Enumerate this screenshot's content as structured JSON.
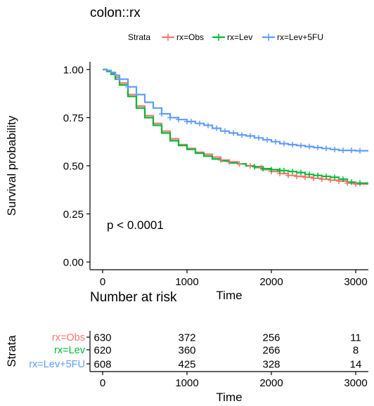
{
  "chart_data": {
    "type": "line",
    "title": "colon::rx",
    "xlabel": "Time",
    "ylabel": "Survival probability",
    "xlim": [
      -150,
      3150
    ],
    "ylim": [
      -0.04,
      1.04
    ],
    "xticks": [
      0,
      1000,
      2000,
      3000
    ],
    "xtick_labels": [
      "0",
      "1000",
      "2000",
      "3000"
    ],
    "yticks": [
      0,
      0.25,
      0.5,
      0.75,
      1.0
    ],
    "ytick_labels": [
      "0.00",
      "0.25",
      "0.50",
      "0.75",
      "1.00"
    ],
    "grid": false,
    "legend": {
      "title": "Strata",
      "position": "top"
    },
    "annotation": "p < 0.0001",
    "series": [
      {
        "name": "rx=Obs",
        "color": "#F8766D",
        "x": [
          0,
          50,
          100,
          150,
          200,
          300,
          400,
          500,
          600,
          700,
          800,
          900,
          1000,
          1100,
          1200,
          1300,
          1400,
          1500,
          1600,
          1700,
          1800,
          1900,
          2000,
          2100,
          2200,
          2300,
          2400,
          2500,
          2600,
          2700,
          2800,
          2900,
          3000,
          3150
        ],
        "y": [
          1.0,
          0.99,
          0.98,
          0.96,
          0.93,
          0.87,
          0.81,
          0.76,
          0.72,
          0.68,
          0.64,
          0.61,
          0.59,
          0.57,
          0.56,
          0.545,
          0.53,
          0.52,
          0.51,
          0.5,
          0.49,
          0.48,
          0.47,
          0.46,
          0.45,
          0.445,
          0.44,
          0.435,
          0.43,
          0.425,
          0.42,
          0.41,
          0.405,
          0.405
        ],
        "censored": [
          1400,
          1500,
          1620,
          1750,
          1880,
          2000,
          2100,
          2200,
          2300,
          2400,
          2500,
          2600,
          2700,
          2800,
          2900,
          3000
        ]
      },
      {
        "name": "rx=Lev",
        "color": "#00BA38",
        "x": [
          0,
          50,
          100,
          150,
          200,
          300,
          400,
          500,
          600,
          700,
          800,
          900,
          1000,
          1100,
          1200,
          1300,
          1400,
          1500,
          1600,
          1700,
          1800,
          1900,
          2000,
          2100,
          2200,
          2300,
          2400,
          2500,
          2600,
          2700,
          2800,
          2900,
          3000,
          3150
        ],
        "y": [
          1.0,
          0.99,
          0.975,
          0.95,
          0.92,
          0.86,
          0.8,
          0.75,
          0.71,
          0.67,
          0.63,
          0.605,
          0.585,
          0.565,
          0.55,
          0.535,
          0.525,
          0.515,
          0.51,
          0.5,
          0.495,
          0.485,
          0.48,
          0.475,
          0.47,
          0.465,
          0.455,
          0.45,
          0.445,
          0.44,
          0.43,
          0.415,
          0.41,
          0.41
        ],
        "censored": [
          1800,
          1900,
          2000,
          2100,
          2150,
          2250,
          2350,
          2450,
          2550,
          2650,
          2750,
          2850,
          2950,
          3050
        ]
      },
      {
        "name": "rx=Lev+5FU",
        "color": "#619CFF",
        "x": [
          0,
          50,
          100,
          150,
          200,
          300,
          400,
          500,
          600,
          700,
          800,
          900,
          1000,
          1100,
          1200,
          1300,
          1400,
          1500,
          1600,
          1700,
          1800,
          1900,
          2000,
          2100,
          2200,
          2300,
          2400,
          2500,
          2600,
          2700,
          2800,
          2900,
          3000,
          3150
        ],
        "y": [
          1.0,
          0.995,
          0.985,
          0.97,
          0.95,
          0.91,
          0.87,
          0.83,
          0.8,
          0.77,
          0.75,
          0.74,
          0.73,
          0.72,
          0.71,
          0.695,
          0.68,
          0.67,
          0.66,
          0.655,
          0.645,
          0.635,
          0.625,
          0.615,
          0.61,
          0.605,
          0.6,
          0.595,
          0.59,
          0.585,
          0.58,
          0.58,
          0.578,
          0.578
        ],
        "censored": [
          200,
          300,
          700,
          800,
          900,
          1000,
          1050,
          1150,
          1250,
          1350,
          1450,
          1550,
          1650,
          1750,
          1850,
          1950,
          2050,
          2150,
          2250,
          2350,
          2450,
          2550,
          2650,
          2750,
          2850,
          2950,
          3050
        ]
      }
    ],
    "risk_table": {
      "title": "Number at risk",
      "ylabel": "Strata",
      "xlabel": "Time",
      "times": [
        0,
        1000,
        2000,
        3000
      ],
      "rows": [
        {
          "label": "rx=Obs",
          "color": "#F8766D",
          "counts": [
            "630",
            "372",
            "256",
            "11"
          ]
        },
        {
          "label": "rx=Lev",
          "color": "#00BA38",
          "counts": [
            "620",
            "360",
            "266",
            "8"
          ]
        },
        {
          "label": "rx=Lev+5FU",
          "color": "#619CFF",
          "counts": [
            "608",
            "425",
            "328",
            "14"
          ]
        }
      ]
    }
  }
}
